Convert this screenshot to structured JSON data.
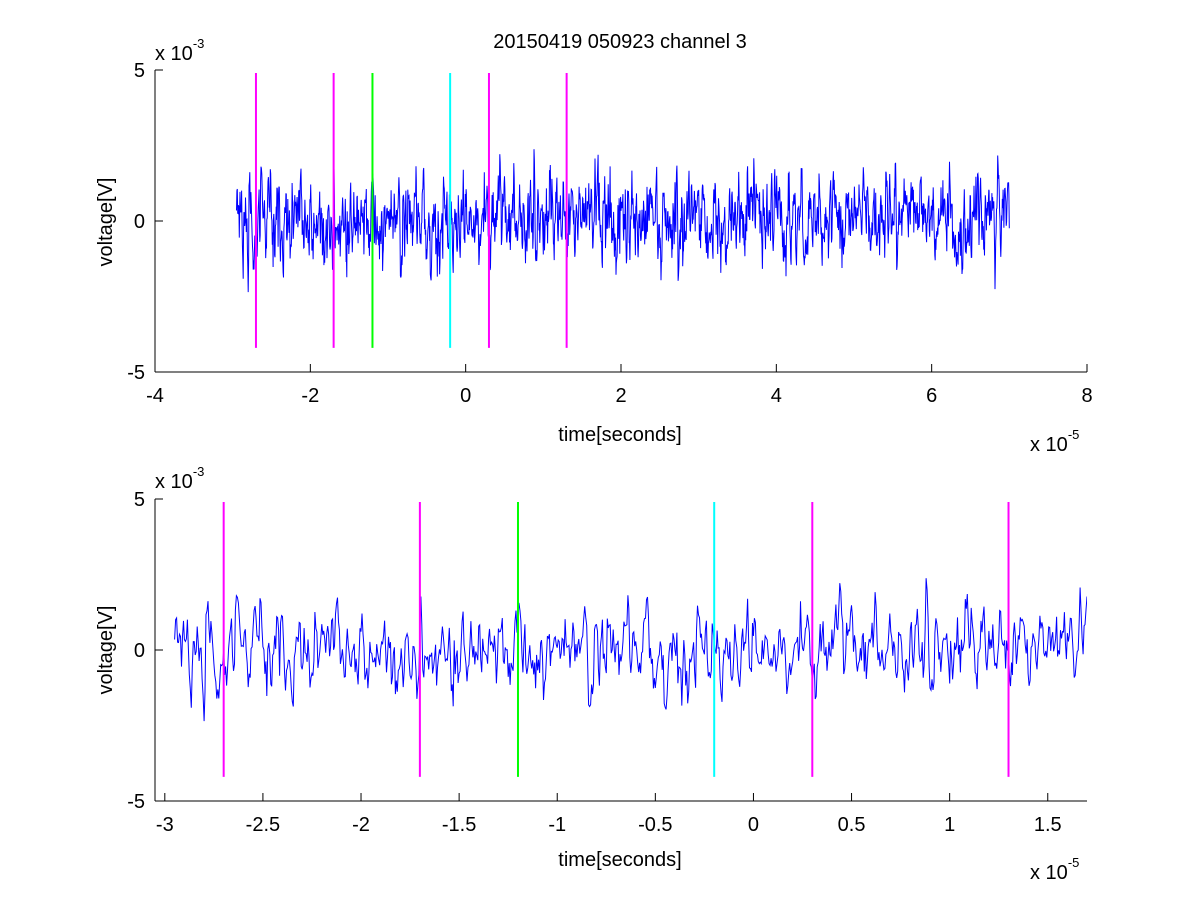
{
  "figure": {
    "title": "20150419 050923 channel 3"
  },
  "chart_data": [
    {
      "type": "line",
      "xlabel": "time[seconds]",
      "ylabel": "voltage[V]",
      "x_exponent_label": "x 10",
      "x_exponent": "-5",
      "y_exponent_label": "x 10",
      "y_exponent": "-3",
      "xlim": [
        -4,
        8
      ],
      "ylim": [
        -5,
        5
      ],
      "x_ticks": [
        -4,
        -2,
        0,
        2,
        4,
        6,
        8
      ],
      "x_tick_labels": [
        "-4",
        "-2",
        "0",
        "2",
        "4",
        "6",
        "8"
      ],
      "y_ticks": [
        -5,
        0,
        5
      ],
      "y_tick_labels": [
        "-5",
        "0",
        "5"
      ],
      "grid": false,
      "signal": {
        "color": "#0000ff",
        "x_start": -2.95,
        "x_end": 7.0,
        "seed": 20150419
      },
      "markers": [
        {
          "x": -2.7,
          "color": "#ff00ff",
          "y_from": -4.2,
          "y_to": 4.9
        },
        {
          "x": -1.7,
          "color": "#ff00ff",
          "y_from": -4.2,
          "y_to": 4.9
        },
        {
          "x": -1.2,
          "color": "#00ff00",
          "y_from": -4.2,
          "y_to": 4.9
        },
        {
          "x": -0.2,
          "color": "#00ffff",
          "y_from": -4.2,
          "y_to": 4.9
        },
        {
          "x": 0.3,
          "color": "#ff00ff",
          "y_from": -4.2,
          "y_to": 4.9
        },
        {
          "x": 1.3,
          "color": "#ff00ff",
          "y_from": -4.2,
          "y_to": 4.9
        }
      ]
    },
    {
      "type": "line",
      "xlabel": "time[seconds]",
      "ylabel": "voltage[V]",
      "x_exponent_label": "x 10",
      "x_exponent": "-5",
      "y_exponent_label": "x 10",
      "y_exponent": "-3",
      "xlim": [
        -3.05,
        1.7
      ],
      "ylim": [
        -5,
        5
      ],
      "x_ticks": [
        -3,
        -2.5,
        -2,
        -1.5,
        -1,
        -0.5,
        0,
        0.5,
        1,
        1.5
      ],
      "x_tick_labels": [
        "-3",
        "-2.5",
        "-2",
        "-1.5",
        "-1",
        "-0.5",
        "0",
        "0.5",
        "1",
        "1.5"
      ],
      "y_ticks": [
        -5,
        0,
        5
      ],
      "y_tick_labels": [
        "-5",
        "0",
        "5"
      ],
      "grid": false,
      "signal": {
        "color": "#0000ff",
        "x_start": -2.95,
        "x_end": 1.7,
        "seed": 20150419
      },
      "markers": [
        {
          "x": -2.7,
          "color": "#ff00ff",
          "y_from": -4.2,
          "y_to": 4.9
        },
        {
          "x": -1.7,
          "color": "#ff00ff",
          "y_from": -4.2,
          "y_to": 4.9
        },
        {
          "x": -1.2,
          "color": "#00ff00",
          "y_from": -4.2,
          "y_to": 4.9
        },
        {
          "x": -0.2,
          "color": "#00ffff",
          "y_from": -4.2,
          "y_to": 4.9
        },
        {
          "x": 0.3,
          "color": "#ff00ff",
          "y_from": -4.2,
          "y_to": 4.9
        },
        {
          "x": 1.3,
          "color": "#ff00ff",
          "y_from": -4.2,
          "y_to": 4.9
        }
      ]
    }
  ]
}
